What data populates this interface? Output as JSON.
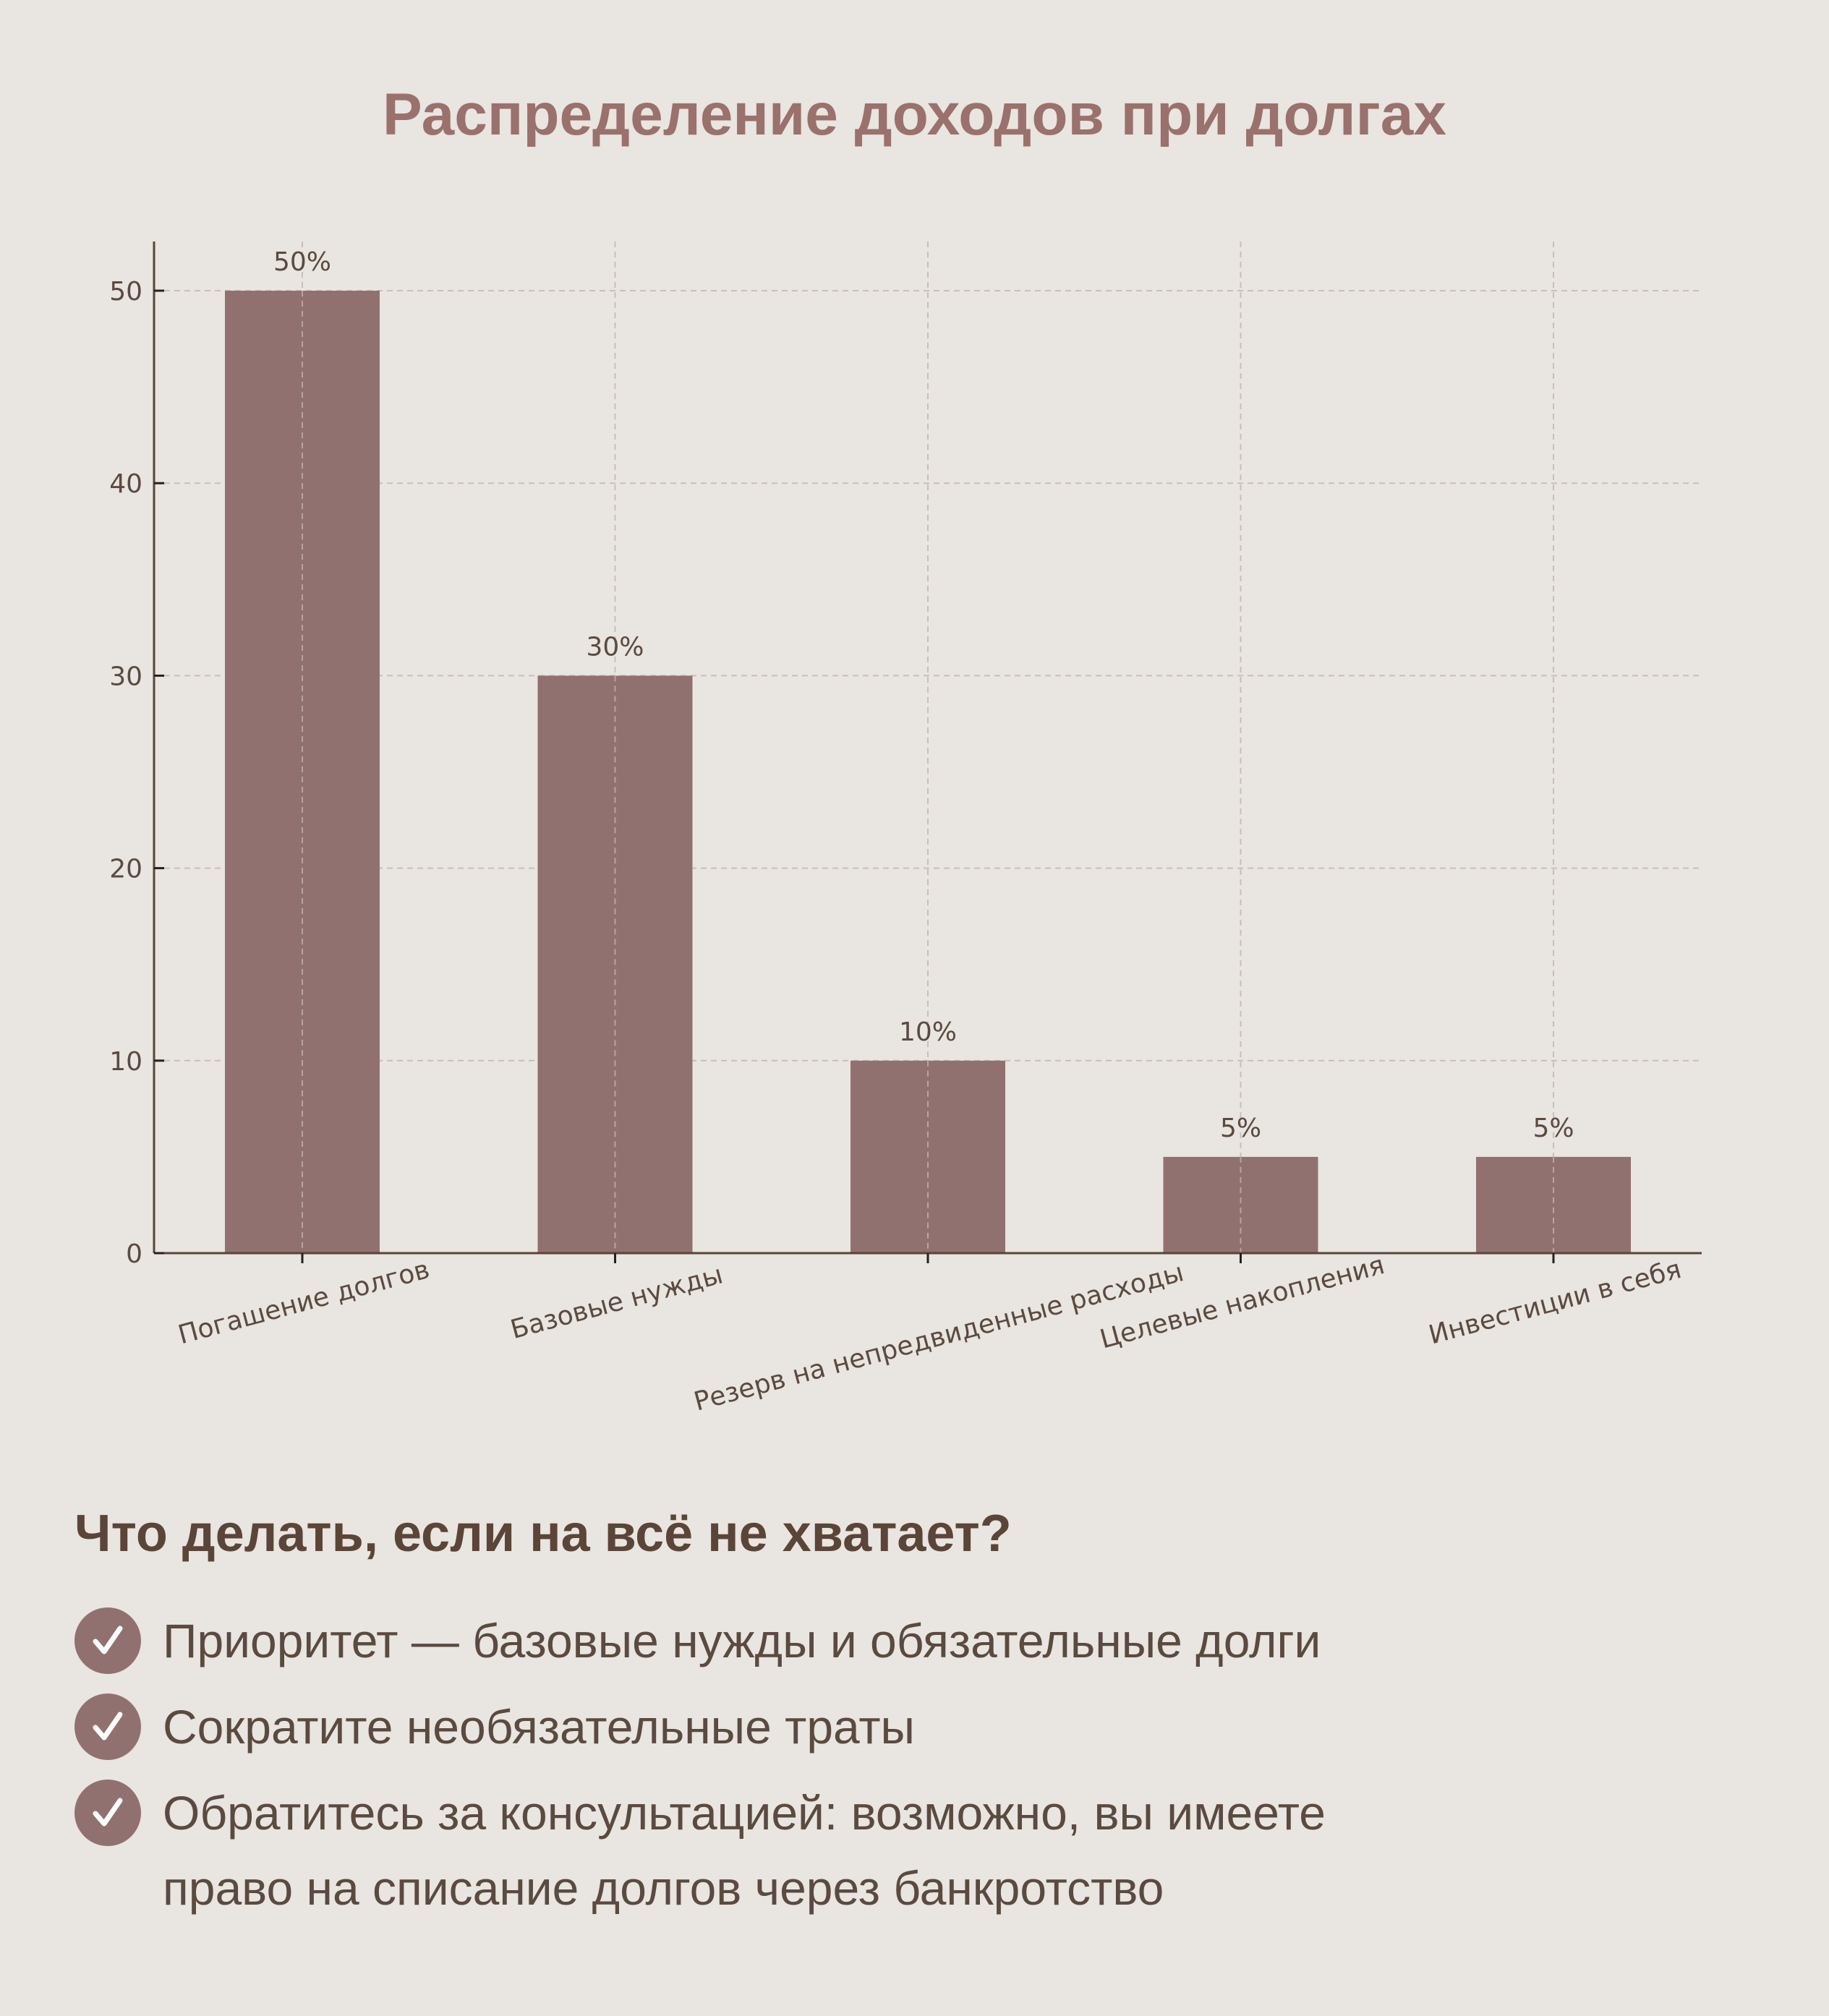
{
  "chart_data": {
    "type": "bar",
    "title": "Распределение доходов при долгах",
    "categories": [
      "Погашение долгов",
      "Базовые нужды",
      "Резерв на непредвиденные расходы",
      "Целевые накопления",
      "Инвестиции в себя"
    ],
    "values": [
      50,
      30,
      10,
      5,
      5
    ],
    "data_labels": [
      "50%",
      "30%",
      "10%",
      "5%",
      "5%"
    ],
    "xlabel": "",
    "ylabel": "",
    "ylim": [
      0,
      52.5
    ],
    "yticks": [
      0,
      10,
      20,
      30,
      40,
      50
    ],
    "grid": true,
    "bar_color": "#917170"
  },
  "tips": {
    "heading": "Что делать, если на всё не хватает?",
    "items": [
      "Приоритет — базовые нужды и обязательные долги",
      "Сократите необязательные траты",
      "Обратитесь за консультацией: возможно, вы имеете право на списание долгов через банкротство"
    ]
  }
}
